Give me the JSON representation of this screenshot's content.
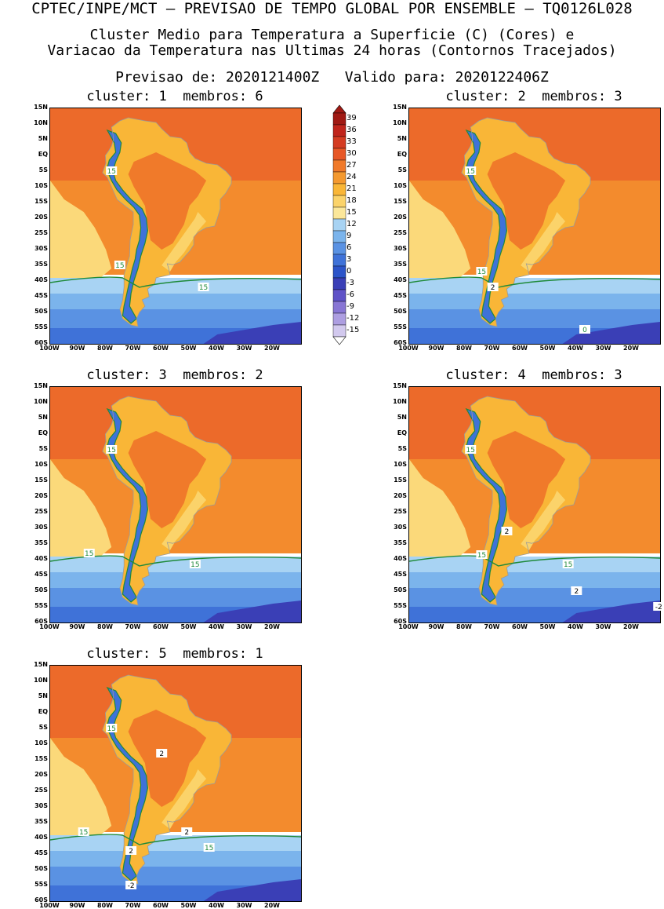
{
  "header": {
    "top": "CPTEC/INPE/MCT — PREVISAO DE TEMPO GLOBAL POR ENSEMBLE — TQ0126L028",
    "line1": "Cluster Medio para Temperatura a Superficie (C) (Cores) e",
    "line2": "Variacao da Temperatura nas Ultimas 24 horas (Contornos Tracejados)",
    "line3": "Previsao de: 2020121400Z   Valido para: 2020122406Z"
  },
  "clusters": [
    {
      "title": "cluster: 1  membros: 6"
    },
    {
      "title": "cluster: 2  membros: 3"
    },
    {
      "title": "cluster: 3  membros: 2"
    },
    {
      "title": "cluster: 4  membros: 3"
    },
    {
      "title": "cluster: 5  membros: 1"
    }
  ],
  "axes": {
    "lat": [
      "15N",
      "10N",
      "5N",
      "EQ",
      "5S",
      "10S",
      "15S",
      "20S",
      "25S",
      "30S",
      "35S",
      "40S",
      "45S",
      "50S",
      "55S",
      "60S"
    ],
    "lon": [
      "100W",
      "90W",
      "80W",
      "70W",
      "60W",
      "50W",
      "40W",
      "30W",
      "20W"
    ]
  },
  "colorbar": {
    "labels": [
      "39",
      "36",
      "33",
      "30",
      "27",
      "24",
      "21",
      "18",
      "15",
      "12",
      "9",
      "6",
      "3",
      "0",
      "-3",
      "-6",
      "-9",
      "-12",
      "-15"
    ],
    "colors": [
      "#a01a14",
      "#c0251c",
      "#d43c22",
      "#e75726",
      "#f07a2a",
      "#f4992f",
      "#f9b637",
      "#fbd36a",
      "#fbe79a",
      "#a8d3f3",
      "#7bb4ec",
      "#5a92e3",
      "#3f72d8",
      "#2c54c9",
      "#3a3fb6",
      "#5f52c7",
      "#8876d4",
      "#ad9ee1",
      "#d2c9ee"
    ]
  },
  "contours": {
    "c1": [
      "15",
      "15",
      "15"
    ],
    "c2": [
      "15",
      "15",
      "2",
      "0"
    ],
    "c3": [
      "15",
      "15",
      "15"
    ],
    "c4": [
      "15",
      "15",
      "15",
      "2",
      "2",
      "-2"
    ],
    "c5": [
      "15",
      "15",
      "15",
      "2",
      "2",
      "2",
      "-2"
    ]
  }
}
